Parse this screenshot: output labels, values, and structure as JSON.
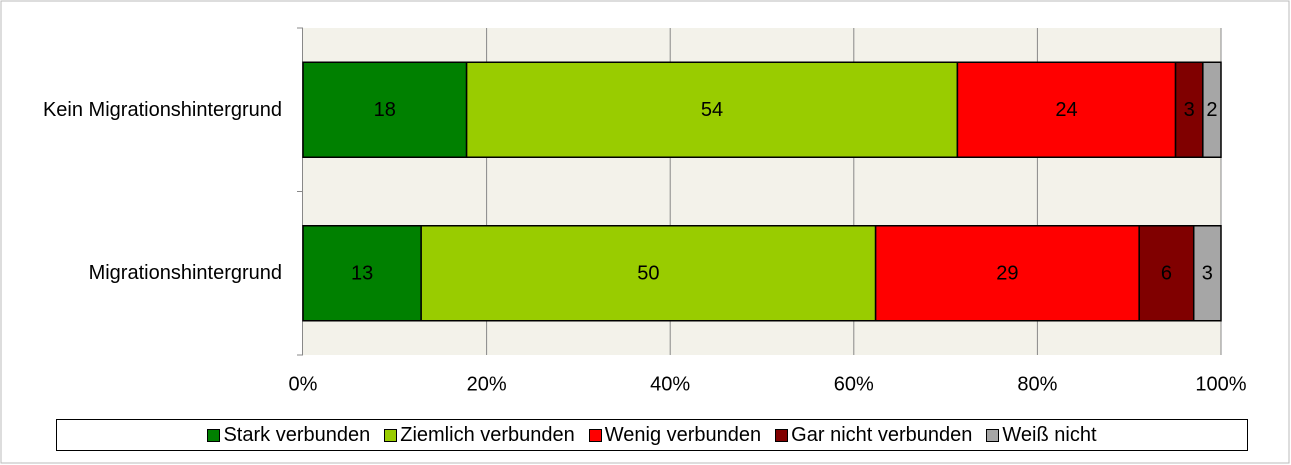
{
  "chart_data": {
    "type": "stacked100",
    "categories": [
      "Kein Migrationshintergrund",
      "Migrationshintergrund"
    ],
    "series": [
      {
        "name": "Stark verbunden",
        "color": "#008000",
        "values": [
          18,
          13
        ]
      },
      {
        "name": "Ziemlich verbunden",
        "color": "#99cc00",
        "values": [
          54,
          50
        ]
      },
      {
        "name": "Wenig verbunden",
        "color": "#ff0000",
        "values": [
          24,
          29
        ]
      },
      {
        "name": "Gar nicht verbunden",
        "color": "#800000",
        "values": [
          3,
          6
        ]
      },
      {
        "name": "Weiß nicht",
        "color": "#a6a6a6",
        "values": [
          2,
          3
        ]
      }
    ],
    "xlim": [
      0,
      100
    ],
    "xticks": [
      {
        "value": 0,
        "label": "0%"
      },
      {
        "value": 20,
        "label": "20%"
      },
      {
        "value": 40,
        "label": "40%"
      },
      {
        "value": 60,
        "label": "60%"
      },
      {
        "value": 80,
        "label": "80%"
      },
      {
        "value": 100,
        "label": "100%"
      }
    ],
    "grid": true,
    "legend": "bottom"
  }
}
